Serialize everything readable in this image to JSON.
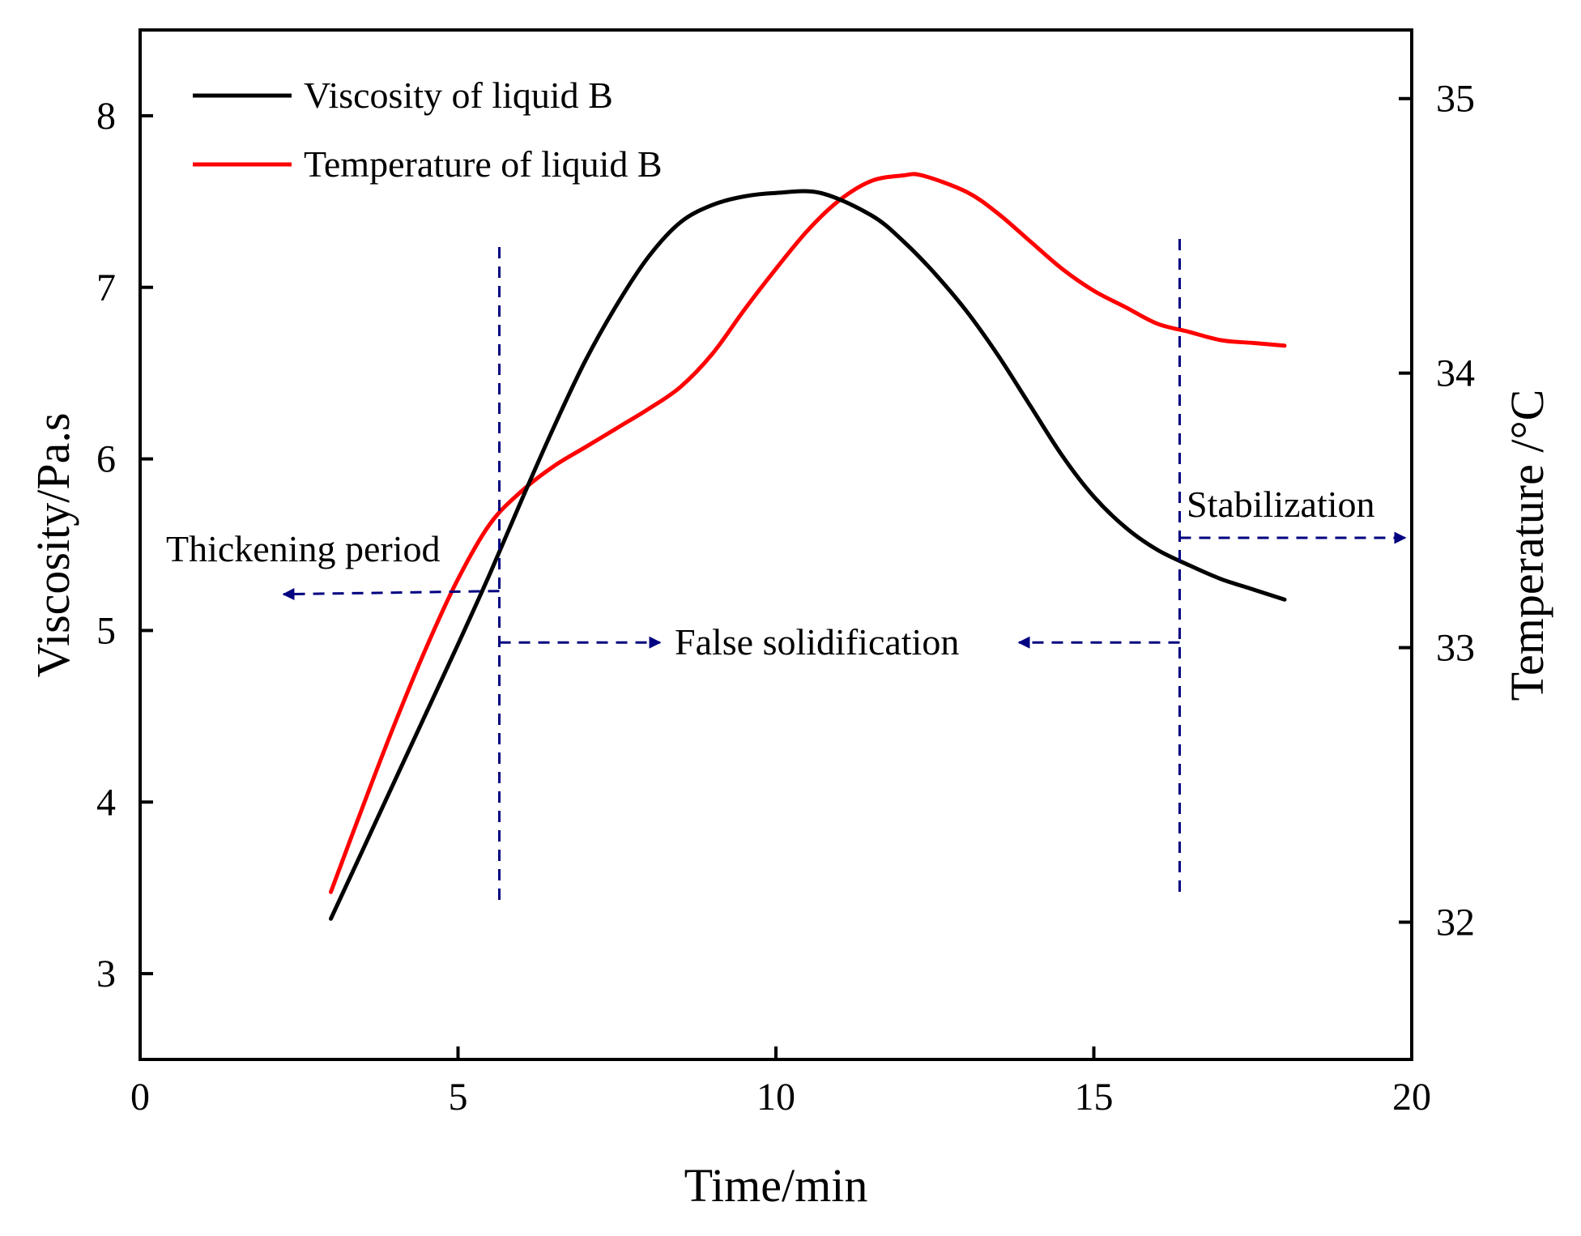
{
  "chart_data": {
    "type": "line",
    "title": "",
    "xlabel": "Time/min",
    "ylabel_left": "Viscosity/Pa.s",
    "ylabel_right": "Temperature /°C",
    "xlim": [
      0,
      20
    ],
    "ylim_left": [
      2.5,
      8.5
    ],
    "ylim_right": [
      31.5,
      35.25
    ],
    "x_ticks": [
      0,
      5,
      10,
      15,
      20
    ],
    "y_left_ticks": [
      3,
      4,
      5,
      6,
      7,
      8
    ],
    "y_right_ticks": [
      32,
      33,
      34,
      35
    ],
    "grid": false,
    "legend_position": "top-left",
    "series": [
      {
        "name": "Viscosity of liquid B",
        "axis": "left",
        "color": "#000000",
        "x": [
          3.0,
          3.5,
          4.0,
          4.5,
          5.0,
          5.5,
          6.0,
          6.5,
          7.0,
          7.5,
          8.0,
          8.5,
          9.0,
          9.5,
          10.0,
          10.7,
          11.5,
          12.0,
          12.5,
          13.0,
          13.5,
          14.0,
          14.5,
          15.0,
          15.5,
          16.0,
          16.5,
          17.0,
          17.5,
          18.0
        ],
        "y": [
          3.32,
          3.72,
          4.12,
          4.52,
          4.92,
          5.33,
          5.76,
          6.18,
          6.57,
          6.9,
          7.18,
          7.38,
          7.48,
          7.53,
          7.55,
          7.55,
          7.42,
          7.27,
          7.08,
          6.86,
          6.6,
          6.31,
          6.02,
          5.78,
          5.6,
          5.47,
          5.38,
          5.3,
          5.24,
          5.18
        ]
      },
      {
        "name": "Temperature of liquid B",
        "axis": "right",
        "color": "#ff0000",
        "x": [
          3.0,
          3.5,
          4.0,
          4.5,
          5.0,
          5.5,
          6.0,
          6.5,
          7.0,
          7.5,
          8.0,
          8.5,
          9.0,
          9.5,
          10.0,
          10.5,
          11.0,
          11.5,
          12.0,
          12.3,
          13.0,
          13.5,
          14.0,
          14.5,
          15.0,
          15.5,
          16.0,
          16.5,
          17.0,
          17.5,
          18.0
        ],
        "y": [
          32.11,
          32.42,
          32.72,
          33.0,
          33.25,
          33.45,
          33.57,
          33.66,
          33.73,
          33.8,
          33.87,
          33.95,
          34.07,
          34.23,
          34.38,
          34.52,
          34.63,
          34.7,
          34.72,
          34.72,
          34.66,
          34.58,
          34.48,
          34.38,
          34.3,
          34.24,
          34.18,
          34.15,
          34.12,
          34.11,
          34.1
        ]
      }
    ],
    "annotations": {
      "thickening": "Thickening period",
      "false_solid": "False solidification",
      "stabilization": "Stabilization"
    },
    "annotation_marks": {
      "vline_1_x": 5.65,
      "vline_2_x": 16.35
    },
    "annotation_color": "#000080"
  }
}
